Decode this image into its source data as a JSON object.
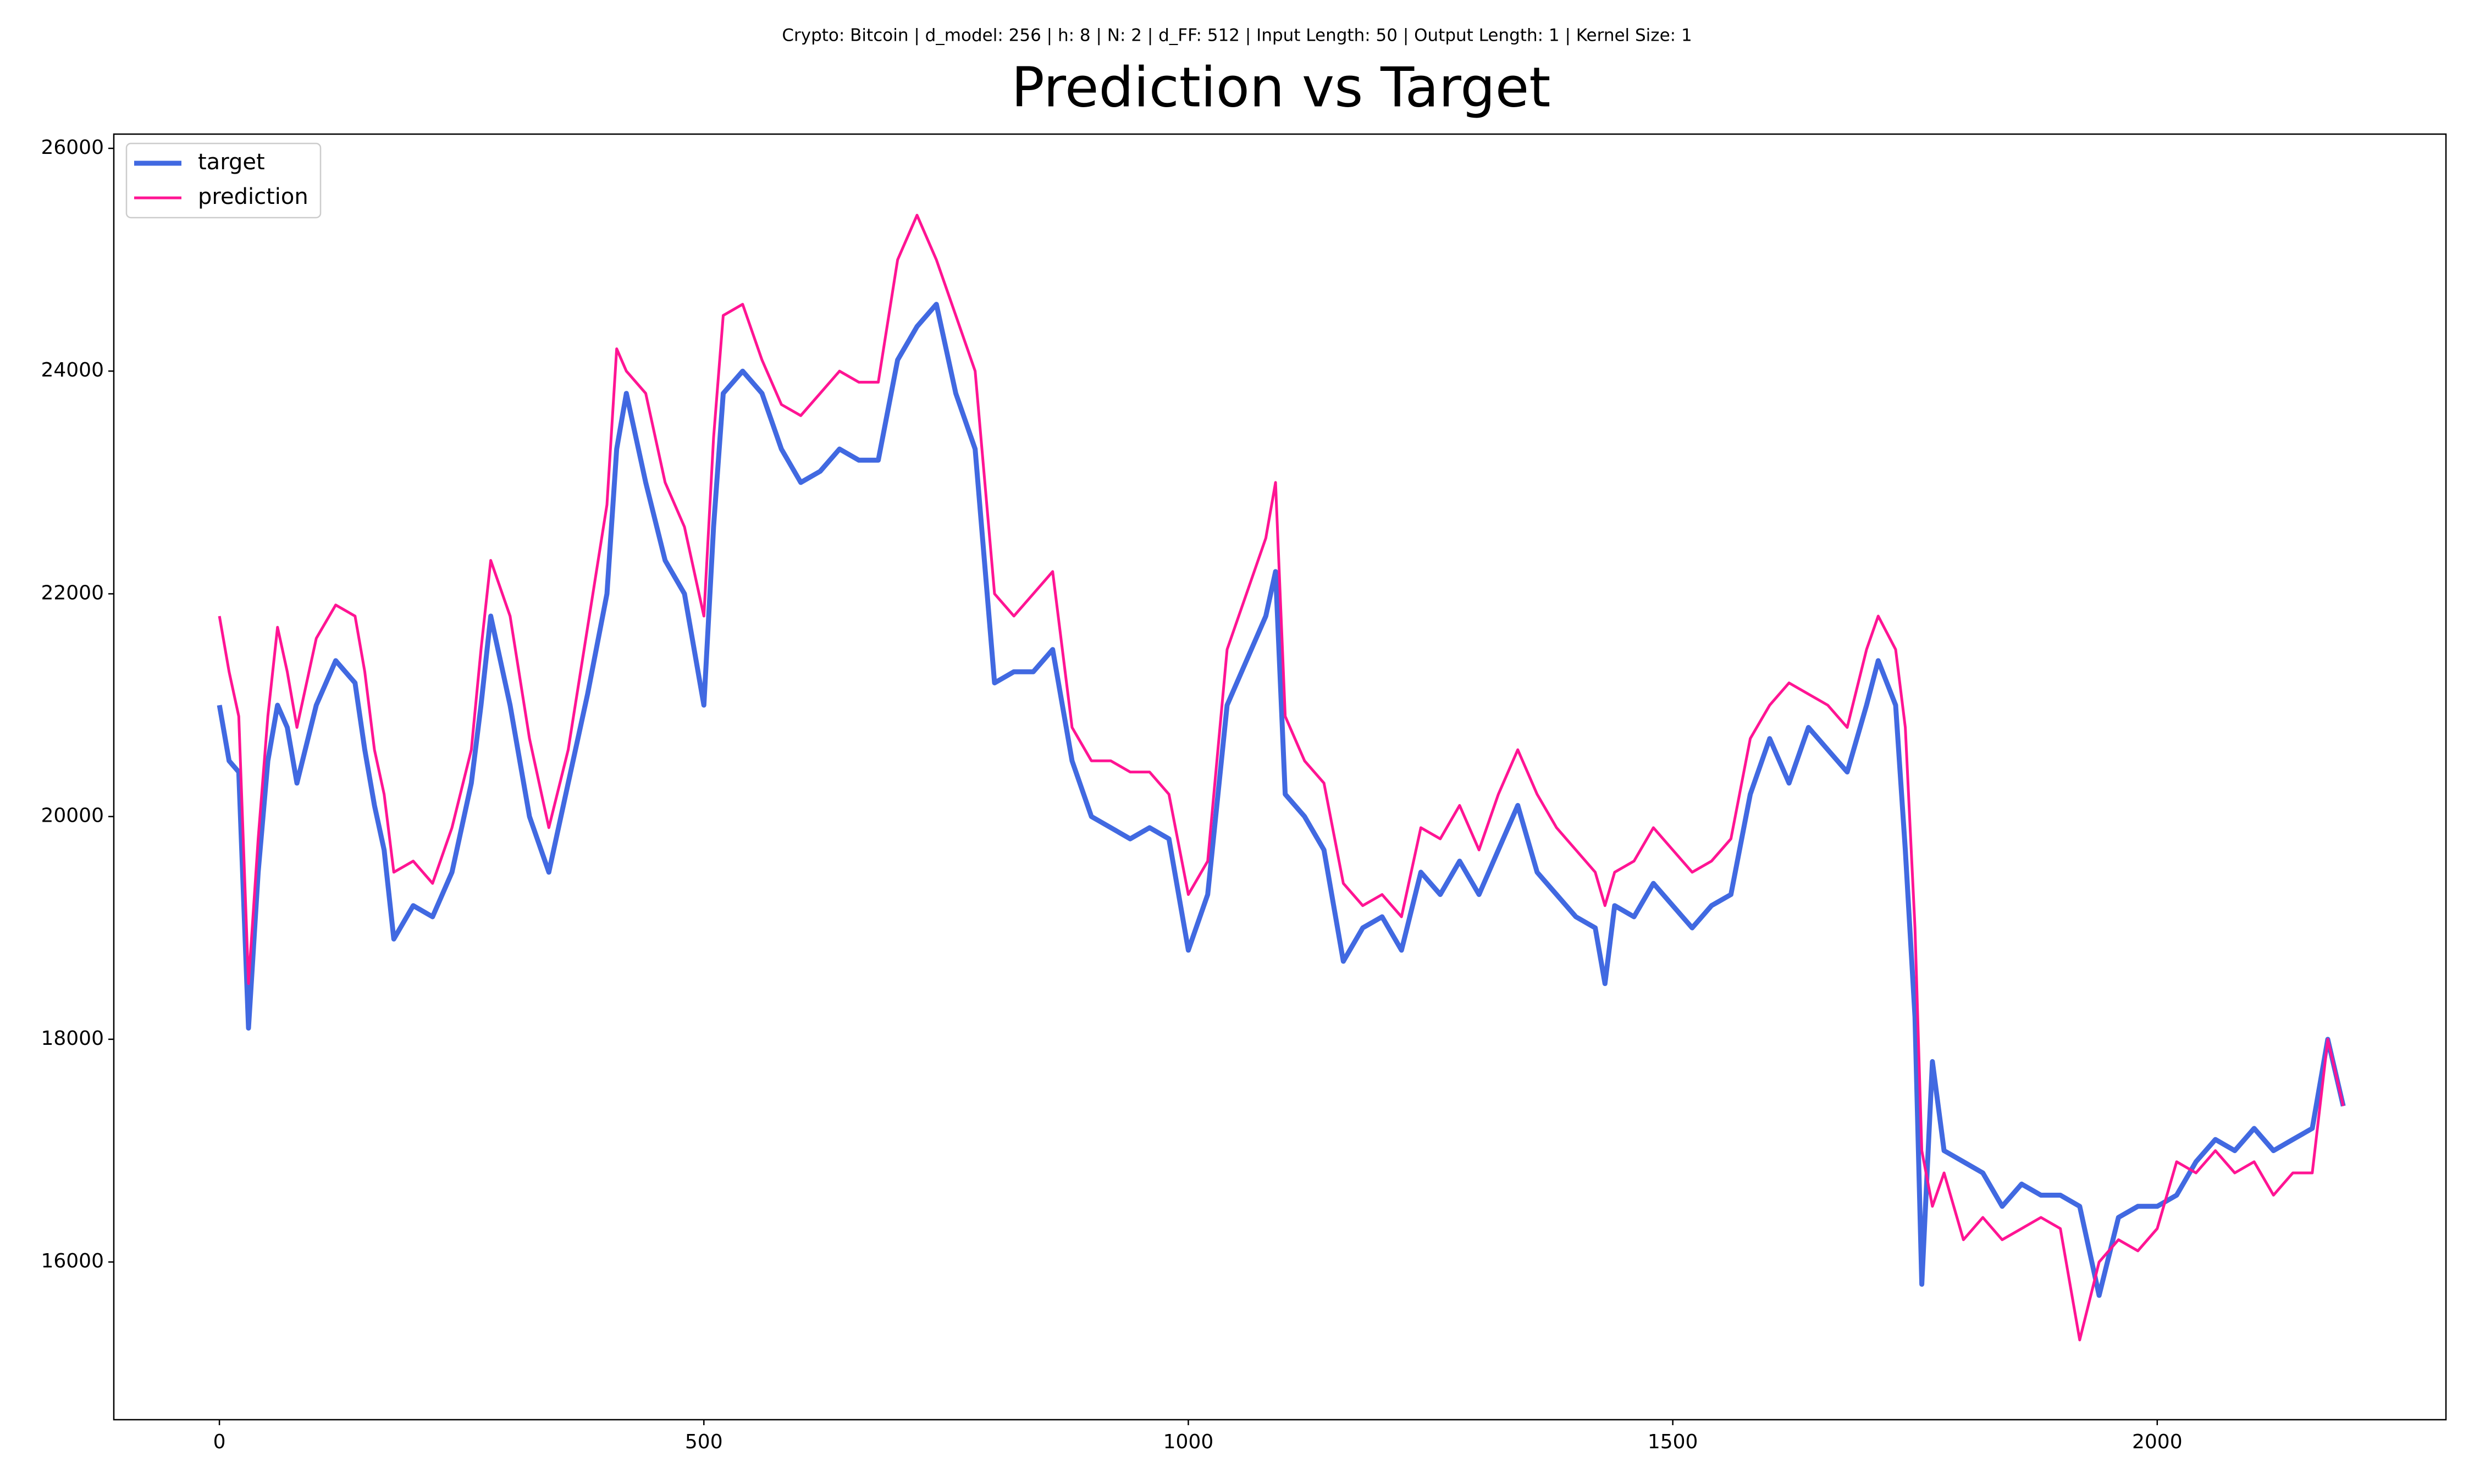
{
  "chart_data": {
    "type": "line",
    "subtitle": "Crypto: Bitcoin | d_model: 256 | h: 8 | N: 2 | d_FF: 512 | Input Length: 50 | Output Length: 1 | Kernel Size: 1",
    "title": "Prediction vs Target",
    "x": [
      0,
      10,
      20,
      30,
      40,
      50,
      60,
      70,
      80,
      100,
      120,
      140,
      150,
      160,
      170,
      180,
      200,
      220,
      240,
      260,
      270,
      280,
      300,
      320,
      340,
      360,
      380,
      400,
      410,
      420,
      440,
      460,
      480,
      500,
      510,
      520,
      540,
      560,
      580,
      600,
      620,
      640,
      660,
      680,
      700,
      720,
      740,
      760,
      780,
      800,
      820,
      840,
      860,
      880,
      900,
      920,
      940,
      960,
      980,
      1000,
      1020,
      1040,
      1060,
      1080,
      1090,
      1100,
      1120,
      1140,
      1160,
      1180,
      1200,
      1220,
      1240,
      1260,
      1280,
      1300,
      1320,
      1340,
      1360,
      1380,
      1400,
      1420,
      1430,
      1440,
      1460,
      1480,
      1500,
      1520,
      1540,
      1560,
      1580,
      1600,
      1620,
      1640,
      1660,
      1680,
      1700,
      1712,
      1730,
      1740,
      1750,
      1757,
      1768,
      1780,
      1800,
      1820,
      1840,
      1860,
      1880,
      1900,
      1920,
      1940,
      1960,
      1980,
      2000,
      2020,
      2040,
      2060,
      2080,
      2100,
      2120,
      2140,
      2160,
      2176,
      2192
    ],
    "series": [
      {
        "name": "target",
        "color": "#4169e1",
        "width": 9,
        "values": [
          21000,
          20500,
          20400,
          18100,
          19500,
          20500,
          21000,
          20800,
          20300,
          21000,
          21400,
          21200,
          20600,
          20100,
          19700,
          18900,
          19200,
          19100,
          19500,
          20300,
          21000,
          21800,
          21000,
          20000,
          19500,
          20300,
          21100,
          22000,
          23300,
          23800,
          23000,
          22300,
          22000,
          21000,
          22600,
          23800,
          24000,
          23800,
          23300,
          23000,
          23100,
          23300,
          23200,
          23200,
          24100,
          24400,
          24600,
          23800,
          23300,
          21200,
          21300,
          21300,
          21500,
          20500,
          20000,
          19900,
          19800,
          19900,
          19800,
          18800,
          19300,
          21000,
          21400,
          21800,
          22200,
          20200,
          20000,
          19700,
          18700,
          19000,
          19100,
          18800,
          19500,
          19300,
          19600,
          19300,
          19700,
          20100,
          19500,
          19300,
          19100,
          19000,
          18500,
          19200,
          19100,
          19400,
          19200,
          19000,
          19200,
          19300,
          20200,
          20700,
          20300,
          20800,
          20600,
          20400,
          21000,
          21400,
          21000,
          19700,
          18200,
          15800,
          17800,
          17000,
          16900,
          16800,
          16500,
          16700,
          16600,
          16600,
          16500,
          15700,
          16400,
          16500,
          16500,
          16600,
          16900,
          17100,
          17000,
          17200,
          17000,
          17100,
          17200,
          18000,
          17400
        ]
      },
      {
        "name": "prediction",
        "color": "#ff1493",
        "width": 5,
        "values": [
          21800,
          21300,
          20900,
          18500,
          19800,
          20900,
          21700,
          21300,
          20800,
          21600,
          21900,
          21800,
          21300,
          20600,
          20200,
          19500,
          19600,
          19400,
          19900,
          20600,
          21500,
          22300,
          21800,
          20700,
          19900,
          20600,
          21700,
          22800,
          24200,
          24000,
          23800,
          23000,
          22600,
          21800,
          23400,
          24500,
          24600,
          24100,
          23700,
          23600,
          23800,
          24000,
          23900,
          23900,
          25000,
          25400,
          25000,
          24500,
          24000,
          22000,
          21800,
          22000,
          22200,
          20800,
          20500,
          20500,
          20400,
          20400,
          20200,
          19300,
          19600,
          21500,
          22000,
          22500,
          23000,
          20900,
          20500,
          20300,
          19400,
          19200,
          19300,
          19100,
          19900,
          19800,
          20100,
          19700,
          20200,
          20600,
          20200,
          19900,
          19700,
          19500,
          19200,
          19500,
          19600,
          19900,
          19700,
          19500,
          19600,
          19800,
          20700,
          21000,
          21200,
          21100,
          21000,
          20800,
          21500,
          21800,
          21500,
          20800,
          19000,
          17000,
          16500,
          16800,
          16200,
          16400,
          16200,
          16300,
          16400,
          16300,
          15300,
          16000,
          16200,
          16100,
          16300,
          16900,
          16800,
          17000,
          16800,
          16900,
          16600,
          16800,
          16800,
          18000,
          17400
        ]
      }
    ],
    "xlim": [
      -109,
      2298
    ],
    "ylim": [
      14584,
      26128
    ],
    "xticks": [
      0,
      500,
      1000,
      1500,
      2000
    ],
    "yticks": [
      16000,
      18000,
      20000,
      22000,
      24000,
      26000
    ],
    "legend": "upper left",
    "grid": false
  }
}
